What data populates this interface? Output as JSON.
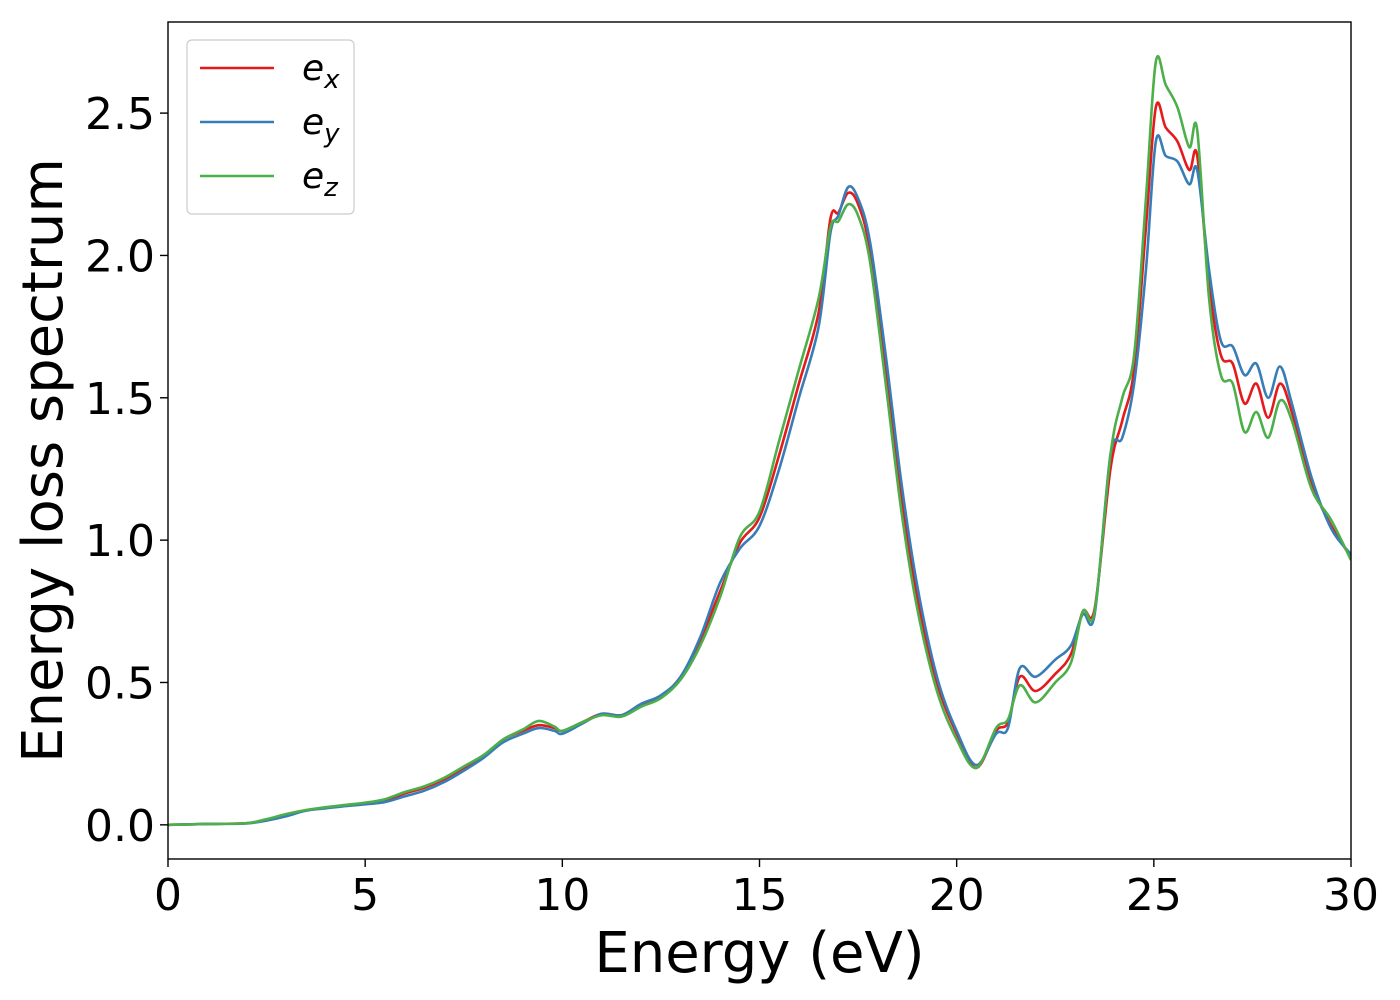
{
  "chart_data": {
    "type": "line",
    "title": "",
    "xlabel": "Energy (eV)",
    "ylabel": "Energy loss spectrum",
    "xlim": [
      0,
      30
    ],
    "ylim": [
      -0.12,
      2.82
    ],
    "xticks": [
      0,
      5,
      10,
      15,
      20,
      25,
      30
    ],
    "yticks": [
      0.0,
      0.5,
      1.0,
      1.5,
      2.0,
      2.5
    ],
    "xtick_labels": [
      "0",
      "5",
      "10",
      "15",
      "20",
      "25",
      "30"
    ],
    "ytick_labels": [
      "0.0",
      "0.5",
      "1.0",
      "1.5",
      "2.0",
      "2.5"
    ],
    "grid": false,
    "legend_position": "top-left",
    "series": [
      {
        "name": "e_x",
        "label_base": "e",
        "label_sub": "x",
        "color": "#e41a1c",
        "points": [
          [
            0,
            0
          ],
          [
            1,
            0.003
          ],
          [
            2,
            0.006
          ],
          [
            2.5,
            0.018
          ],
          [
            3,
            0.035
          ],
          [
            3.5,
            0.05
          ],
          [
            4,
            0.06
          ],
          [
            4.5,
            0.068
          ],
          [
            5,
            0.075
          ],
          [
            5.5,
            0.085
          ],
          [
            6,
            0.11
          ],
          [
            6.5,
            0.13
          ],
          [
            7,
            0.16
          ],
          [
            7.5,
            0.2
          ],
          [
            8,
            0.24
          ],
          [
            8.5,
            0.3
          ],
          [
            9,
            0.33
          ],
          [
            9.4,
            0.35
          ],
          [
            9.8,
            0.34
          ],
          [
            10,
            0.33
          ],
          [
            10.5,
            0.36
          ],
          [
            11,
            0.39
          ],
          [
            11.5,
            0.385
          ],
          [
            12,
            0.42
          ],
          [
            12.5,
            0.45
          ],
          [
            13,
            0.52
          ],
          [
            13.5,
            0.65
          ],
          [
            14,
            0.82
          ],
          [
            14.5,
            0.99
          ],
          [
            15,
            1.08
          ],
          [
            15.5,
            1.3
          ],
          [
            16,
            1.55
          ],
          [
            16.5,
            1.8
          ],
          [
            16.8,
            2.13
          ],
          [
            17,
            2.15
          ],
          [
            17.25,
            2.22
          ],
          [
            17.5,
            2.18
          ],
          [
            17.8,
            2.02
          ],
          [
            18.2,
            1.6
          ],
          [
            18.6,
            1.15
          ],
          [
            19,
            0.8
          ],
          [
            19.5,
            0.5
          ],
          [
            20,
            0.32
          ],
          [
            20.5,
            0.2
          ],
          [
            21,
            0.33
          ],
          [
            21.3,
            0.36
          ],
          [
            21.6,
            0.52
          ],
          [
            22,
            0.47
          ],
          [
            22.5,
            0.53
          ],
          [
            22.9,
            0.6
          ],
          [
            23.2,
            0.75
          ],
          [
            23.5,
            0.76
          ],
          [
            23.9,
            1.25
          ],
          [
            24.2,
            1.42
          ],
          [
            24.5,
            1.6
          ],
          [
            24.8,
            2.1
          ],
          [
            25.05,
            2.52
          ],
          [
            25.3,
            2.45
          ],
          [
            25.6,
            2.4
          ],
          [
            25.9,
            2.3
          ],
          [
            26.1,
            2.35
          ],
          [
            26.4,
            1.9
          ],
          [
            26.7,
            1.65
          ],
          [
            27,
            1.62
          ],
          [
            27.3,
            1.48
          ],
          [
            27.6,
            1.55
          ],
          [
            27.9,
            1.43
          ],
          [
            28.2,
            1.55
          ],
          [
            28.5,
            1.45
          ],
          [
            29,
            1.2
          ],
          [
            29.5,
            1.05
          ],
          [
            30,
            0.94
          ]
        ]
      },
      {
        "name": "e_y",
        "label_base": "e",
        "label_sub": "y",
        "color": "#377eb8",
        "points": [
          [
            0,
            0
          ],
          [
            1,
            0.003
          ],
          [
            2,
            0.005
          ],
          [
            2.5,
            0.015
          ],
          [
            3,
            0.03
          ],
          [
            3.5,
            0.05
          ],
          [
            4,
            0.058
          ],
          [
            4.5,
            0.066
          ],
          [
            5,
            0.072
          ],
          [
            5.5,
            0.08
          ],
          [
            6,
            0.1
          ],
          [
            6.5,
            0.12
          ],
          [
            7,
            0.15
          ],
          [
            7.5,
            0.19
          ],
          [
            8,
            0.235
          ],
          [
            8.5,
            0.29
          ],
          [
            9,
            0.32
          ],
          [
            9.4,
            0.34
          ],
          [
            9.8,
            0.33
          ],
          [
            10,
            0.32
          ],
          [
            10.5,
            0.355
          ],
          [
            11,
            0.39
          ],
          [
            11.5,
            0.385
          ],
          [
            12,
            0.425
          ],
          [
            12.5,
            0.455
          ],
          [
            13,
            0.52
          ],
          [
            13.5,
            0.66
          ],
          [
            14,
            0.85
          ],
          [
            14.5,
            0.97
          ],
          [
            15,
            1.05
          ],
          [
            15.5,
            1.25
          ],
          [
            16,
            1.5
          ],
          [
            16.5,
            1.75
          ],
          [
            16.8,
            2.08
          ],
          [
            17,
            2.14
          ],
          [
            17.25,
            2.24
          ],
          [
            17.5,
            2.2
          ],
          [
            17.8,
            2.05
          ],
          [
            18.2,
            1.65
          ],
          [
            18.6,
            1.2
          ],
          [
            19,
            0.84
          ],
          [
            19.5,
            0.52
          ],
          [
            20,
            0.33
          ],
          [
            20.5,
            0.21
          ],
          [
            21,
            0.32
          ],
          [
            21.3,
            0.34
          ],
          [
            21.6,
            0.55
          ],
          [
            22,
            0.52
          ],
          [
            22.5,
            0.58
          ],
          [
            22.9,
            0.63
          ],
          [
            23.2,
            0.74
          ],
          [
            23.5,
            0.74
          ],
          [
            23.9,
            1.3
          ],
          [
            24.2,
            1.36
          ],
          [
            24.5,
            1.55
          ],
          [
            24.8,
            1.95
          ],
          [
            25.05,
            2.4
          ],
          [
            25.3,
            2.35
          ],
          [
            25.6,
            2.33
          ],
          [
            25.9,
            2.25
          ],
          [
            26.1,
            2.3
          ],
          [
            26.4,
            1.95
          ],
          [
            26.7,
            1.7
          ],
          [
            27,
            1.68
          ],
          [
            27.3,
            1.58
          ],
          [
            27.6,
            1.62
          ],
          [
            27.9,
            1.5
          ],
          [
            28.2,
            1.61
          ],
          [
            28.5,
            1.48
          ],
          [
            29,
            1.22
          ],
          [
            29.5,
            1.04
          ],
          [
            30,
            0.95
          ]
        ]
      },
      {
        "name": "e_z",
        "label_base": "e",
        "label_sub": "z",
        "color": "#4daf4a",
        "points": [
          [
            0,
            0
          ],
          [
            1,
            0.003
          ],
          [
            2,
            0.006
          ],
          [
            2.5,
            0.02
          ],
          [
            3,
            0.038
          ],
          [
            3.5,
            0.052
          ],
          [
            4,
            0.062
          ],
          [
            4.5,
            0.07
          ],
          [
            5,
            0.078
          ],
          [
            5.5,
            0.09
          ],
          [
            6,
            0.115
          ],
          [
            6.5,
            0.135
          ],
          [
            7,
            0.165
          ],
          [
            7.5,
            0.205
          ],
          [
            8,
            0.245
          ],
          [
            8.5,
            0.3
          ],
          [
            9,
            0.335
          ],
          [
            9.4,
            0.365
          ],
          [
            9.8,
            0.345
          ],
          [
            10,
            0.33
          ],
          [
            10.5,
            0.36
          ],
          [
            11,
            0.385
          ],
          [
            11.5,
            0.38
          ],
          [
            12,
            0.415
          ],
          [
            12.5,
            0.445
          ],
          [
            13,
            0.51
          ],
          [
            13.5,
            0.63
          ],
          [
            14,
            0.8
          ],
          [
            14.5,
            1.01
          ],
          [
            15,
            1.1
          ],
          [
            15.5,
            1.35
          ],
          [
            16,
            1.6
          ],
          [
            16.5,
            1.85
          ],
          [
            16.8,
            2.1
          ],
          [
            17,
            2.12
          ],
          [
            17.25,
            2.18
          ],
          [
            17.5,
            2.14
          ],
          [
            17.8,
            1.98
          ],
          [
            18.2,
            1.55
          ],
          [
            18.6,
            1.1
          ],
          [
            19,
            0.76
          ],
          [
            19.5,
            0.47
          ],
          [
            20,
            0.3
          ],
          [
            20.5,
            0.2
          ],
          [
            21,
            0.34
          ],
          [
            21.3,
            0.37
          ],
          [
            21.6,
            0.49
          ],
          [
            22,
            0.43
          ],
          [
            22.5,
            0.5
          ],
          [
            22.9,
            0.57
          ],
          [
            23.2,
            0.75
          ],
          [
            23.5,
            0.75
          ],
          [
            23.9,
            1.3
          ],
          [
            24.2,
            1.5
          ],
          [
            24.5,
            1.65
          ],
          [
            24.8,
            2.2
          ],
          [
            25.05,
            2.68
          ],
          [
            25.3,
            2.6
          ],
          [
            25.6,
            2.52
          ],
          [
            25.9,
            2.38
          ],
          [
            26.1,
            2.44
          ],
          [
            26.4,
            1.85
          ],
          [
            26.7,
            1.58
          ],
          [
            27,
            1.55
          ],
          [
            27.3,
            1.38
          ],
          [
            27.6,
            1.45
          ],
          [
            27.9,
            1.36
          ],
          [
            28.2,
            1.49
          ],
          [
            28.5,
            1.42
          ],
          [
            29,
            1.18
          ],
          [
            29.5,
            1.07
          ],
          [
            30,
            0.93
          ]
        ]
      }
    ]
  }
}
